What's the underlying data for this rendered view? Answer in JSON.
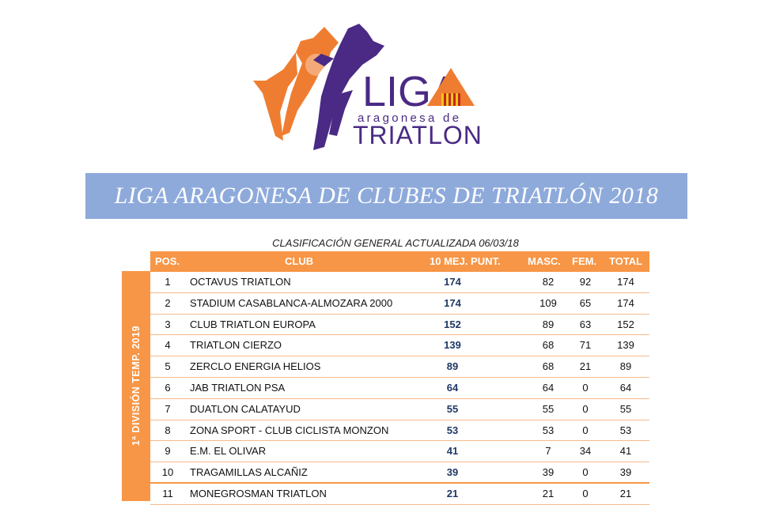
{
  "logo": {
    "brand_top": "LIGA",
    "brand_middle": "aragonesa de",
    "brand_bottom": "TRIATLON",
    "colors": {
      "orange": "#ef7d31",
      "purple": "#4a2a84"
    }
  },
  "banner": {
    "title": "LIGA ARAGONESA DE CLUBES DE TRIATLÓN 2018",
    "color": "#8eaadb"
  },
  "subtitle": "CLASIFICACIÓN GENERAL ACTUALIZADA 06/03/18",
  "sidebar": {
    "label": "1ª DIVISIÓN TEMP. 2019",
    "color": "#f79646"
  },
  "table": {
    "headers": {
      "pos": "POS.",
      "club": "CLUB",
      "pts": "10 MEJ. PUNT.",
      "masc": "MASC.",
      "fem": "FEM.",
      "total": "TOTAL"
    },
    "rows": [
      {
        "pos": "1",
        "club": "OCTAVUS TRIATLON",
        "pts": "174",
        "masc": "82",
        "fem": "92",
        "total": "174"
      },
      {
        "pos": "2",
        "club": "STADIUM CASABLANCA-ALMOZARA 2000",
        "pts": "174",
        "masc": "109",
        "fem": "65",
        "total": "174"
      },
      {
        "pos": "3",
        "club": "CLUB TRIATLON EUROPA",
        "pts": "152",
        "masc": "89",
        "fem": "63",
        "total": "152"
      },
      {
        "pos": "4",
        "club": "TRIATLON CIERZO",
        "pts": "139",
        "masc": "68",
        "fem": "71",
        "total": "139"
      },
      {
        "pos": "5",
        "club": "ZERCLO ENERGIA HELIOS",
        "pts": "89",
        "masc": "68",
        "fem": "21",
        "total": "89"
      },
      {
        "pos": "6",
        "club": "JAB TRIATLON PSA",
        "pts": "64",
        "masc": "64",
        "fem": "0",
        "total": "64"
      },
      {
        "pos": "7",
        "club": "DUATLON CALATAYUD",
        "pts": "55",
        "masc": "55",
        "fem": "0",
        "total": "55"
      },
      {
        "pos": "8",
        "club": "ZONA SPORT - CLUB CICLISTA MONZON",
        "pts": "53",
        "masc": "53",
        "fem": "0",
        "total": "53"
      },
      {
        "pos": "9",
        "club": "E.M. EL OLIVAR",
        "pts": "41",
        "masc": "7",
        "fem": "34",
        "total": "41"
      },
      {
        "pos": "10",
        "club": "TRAGAMILLAS ALCAÑIZ",
        "pts": "39",
        "masc": "39",
        "fem": "0",
        "total": "39"
      },
      {
        "pos": "11",
        "club": "MONEGROSMAN TRIATLON",
        "pts": "21",
        "masc": "21",
        "fem": "0",
        "total": "21"
      }
    ]
  }
}
